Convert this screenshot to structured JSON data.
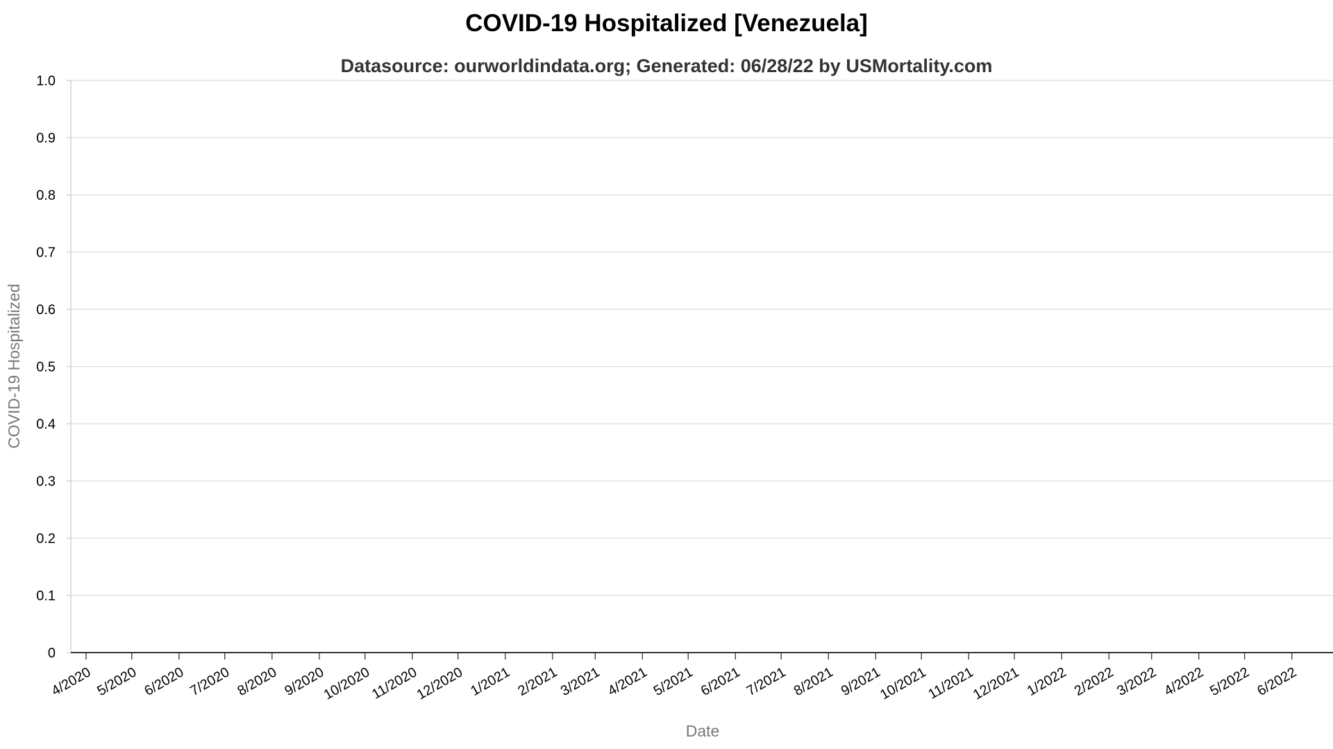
{
  "chart_data": {
    "type": "line",
    "title": "COVID-19 Hospitalized [Venezuela]",
    "subtitle": "Datasource: ourworldindata.org; Generated: 06/28/22 by USMortality.com",
    "xlabel": "Date",
    "ylabel": "COVID-19 Hospitalized",
    "ylim": [
      0,
      1
    ],
    "yticks": [
      "0",
      "0.1",
      "0.2",
      "0.3",
      "0.4",
      "0.5",
      "0.6",
      "0.7",
      "0.8",
      "0.9",
      "1.0"
    ],
    "xticks": [
      "4/2020",
      "5/2020",
      "6/2020",
      "7/2020",
      "8/2020",
      "9/2020",
      "10/2020",
      "11/2020",
      "12/2020",
      "1/2021",
      "2/2021",
      "3/2021",
      "4/2021",
      "5/2021",
      "6/2021",
      "7/2021",
      "8/2021",
      "9/2021",
      "10/2021",
      "11/2021",
      "12/2021",
      "1/2022",
      "2/2022",
      "3/2022",
      "4/2022",
      "5/2022",
      "6/2022"
    ],
    "grid": true,
    "series": []
  }
}
